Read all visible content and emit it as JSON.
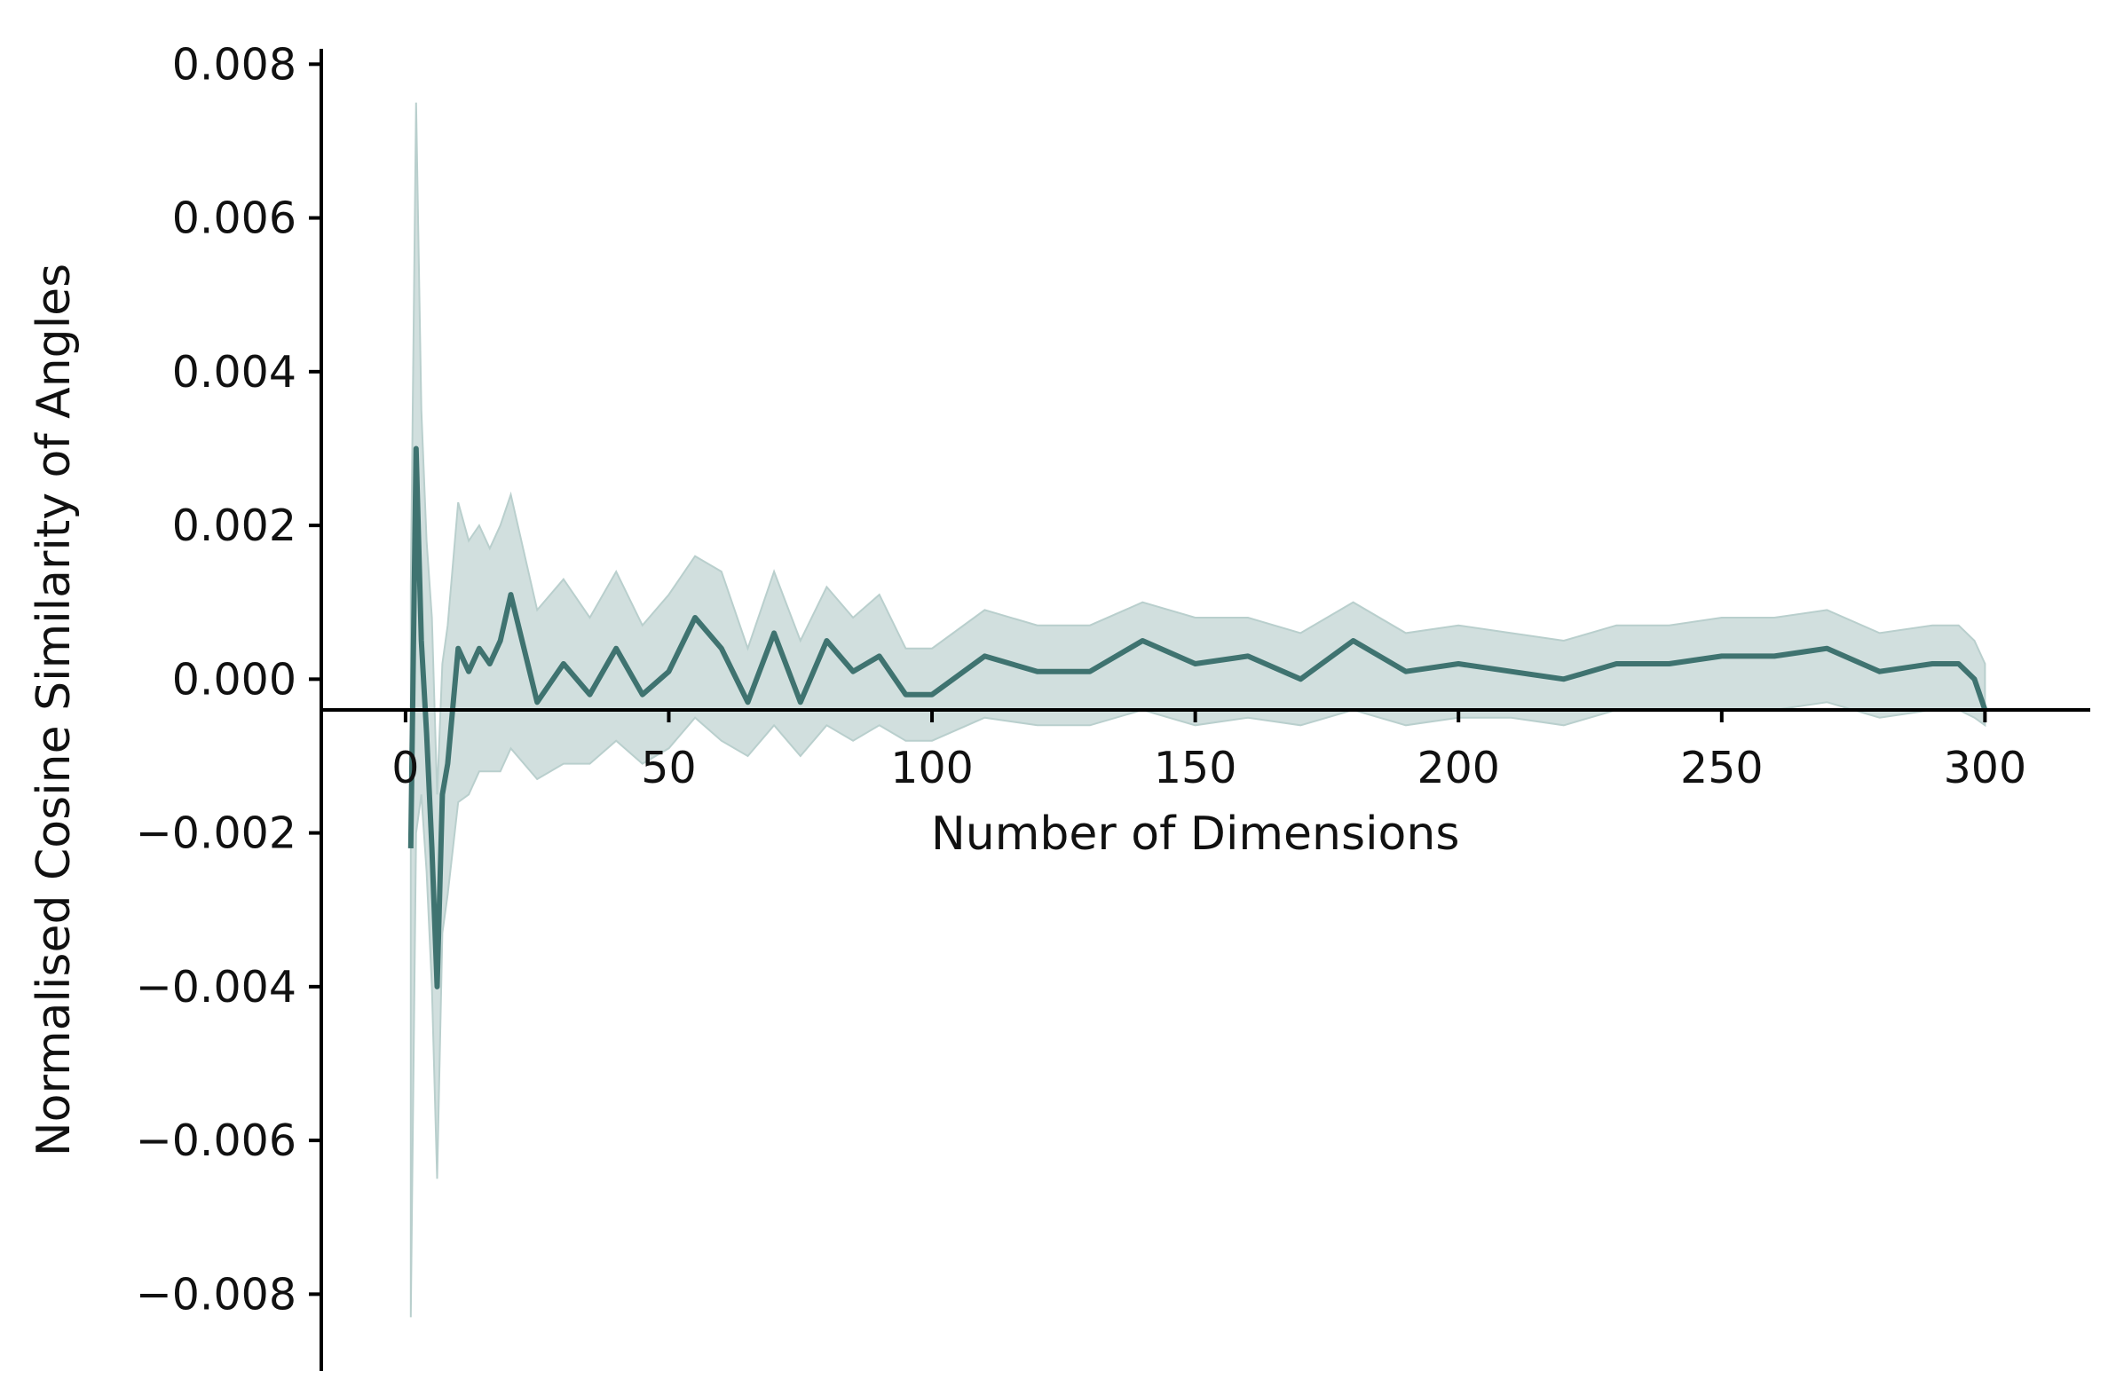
{
  "chart_data": {
    "type": "line",
    "title": "",
    "xlabel": "Number of Dimensions",
    "ylabel": "Normalised Cosine Similarity of Angles",
    "xlim": [
      -16,
      320
    ],
    "ylim": [
      -0.009,
      0.0082
    ],
    "x_ticks": [
      0,
      50,
      100,
      150,
      200,
      250,
      300
    ],
    "x_tick_labels": [
      "0",
      "50",
      "100",
      "150",
      "200",
      "250",
      "300"
    ],
    "y_ticks": [
      0.008,
      0.006,
      0.004,
      0.002,
      0.0,
      -0.002,
      -0.004,
      -0.006,
      -0.008
    ],
    "y_tick_labels": [
      "0.008",
      "0.006",
      "0.004",
      "0.002",
      "0.000",
      "−0.002",
      "−0.004",
      "−0.006",
      "−0.008"
    ],
    "x_axis_crossing_y": -0.0004,
    "grid": false,
    "legend": "none",
    "colors": {
      "line": "#3f7370",
      "band": "#c9d9d8"
    },
    "series": [
      {
        "x": [
          1,
          2,
          3,
          4,
          5,
          6,
          7,
          8,
          10,
          12,
          14,
          16,
          18,
          20,
          25,
          30,
          35,
          40,
          45,
          50,
          55,
          60,
          65,
          70,
          75,
          80,
          85,
          90,
          95,
          100,
          110,
          120,
          130,
          140,
          150,
          160,
          170,
          180,
          190,
          200,
          210,
          220,
          230,
          240,
          250,
          260,
          270,
          280,
          290,
          295,
          298,
          300
        ],
        "mean": [
          -0.0022,
          0.003,
          0.0005,
          -0.0007,
          -0.0022,
          -0.004,
          -0.0015,
          -0.0011,
          0.0004,
          0.0001,
          0.0004,
          0.0002,
          0.0005,
          0.0011,
          -0.0003,
          0.0002,
          -0.0002,
          0.0004,
          -0.0002,
          0.0001,
          0.0008,
          0.0004,
          -0.0003,
          0.0006,
          -0.0003,
          0.0005,
          0.0001,
          0.0003,
          -0.0002,
          -0.0002,
          0.0003,
          0.0001,
          0.0001,
          0.0005,
          0.0002,
          0.0003,
          0.0,
          0.0005,
          0.0001,
          0.0002,
          0.0001,
          0.0,
          0.0002,
          0.0002,
          0.0003,
          0.0003,
          0.0004,
          0.0001,
          0.0002,
          0.0002,
          0.0,
          -0.0004
        ],
        "lower": [
          -0.0083,
          -0.002,
          -0.0015,
          -0.0025,
          -0.004,
          -0.0065,
          -0.0033,
          -0.0028,
          -0.0016,
          -0.0015,
          -0.0012,
          -0.0012,
          -0.0012,
          -0.0009,
          -0.0013,
          -0.0011,
          -0.0011,
          -0.0008,
          -0.0011,
          -0.0009,
          -0.0005,
          -0.0008,
          -0.001,
          -0.0006,
          -0.001,
          -0.0006,
          -0.0008,
          -0.0006,
          -0.0008,
          -0.0008,
          -0.0005,
          -0.0006,
          -0.0006,
          -0.0004,
          -0.0006,
          -0.0005,
          -0.0006,
          -0.0004,
          -0.0006,
          -0.0005,
          -0.0005,
          -0.0006,
          -0.0004,
          -0.0004,
          -0.0004,
          -0.0004,
          -0.0003,
          -0.0005,
          -0.0004,
          -0.0004,
          -0.0005,
          -0.0006
        ],
        "upper": [
          0.0012,
          0.0075,
          0.0035,
          0.0018,
          0.0008,
          -0.0015,
          0.0002,
          0.0007,
          0.0023,
          0.0018,
          0.002,
          0.0017,
          0.002,
          0.0024,
          0.0009,
          0.0013,
          0.0008,
          0.0014,
          0.0007,
          0.0011,
          0.0016,
          0.0014,
          0.0004,
          0.0014,
          0.0005,
          0.0012,
          0.0008,
          0.0011,
          0.0004,
          0.0004,
          0.0009,
          0.0007,
          0.0007,
          0.001,
          0.0008,
          0.0008,
          0.0006,
          0.001,
          0.0006,
          0.0007,
          0.0006,
          0.0005,
          0.0007,
          0.0007,
          0.0008,
          0.0008,
          0.0009,
          0.0006,
          0.0007,
          0.0007,
          0.0005,
          0.0002
        ]
      }
    ]
  }
}
